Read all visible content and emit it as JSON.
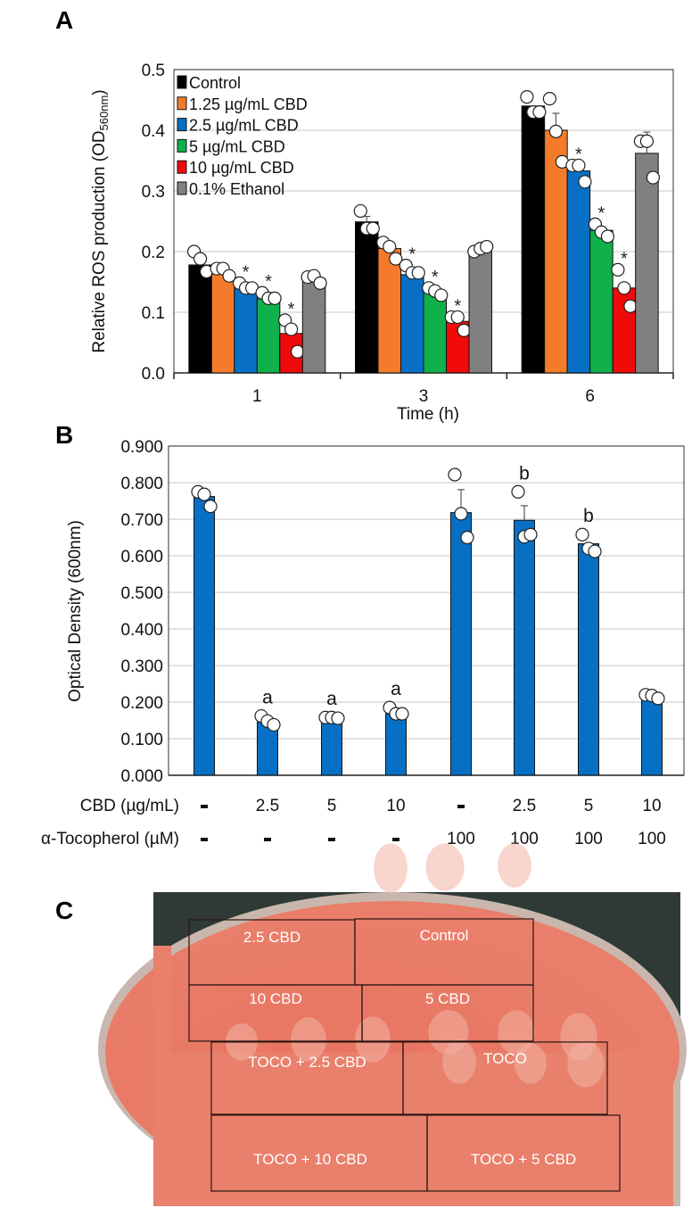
{
  "panels": {
    "a": "A",
    "b": "B",
    "c": "C"
  },
  "chart_data": [
    {
      "type": "bar",
      "panel": "A",
      "xlabel": "Time (h)",
      "ylabel": "Relative ROS production (OD",
      "ylabel_sub": "560nm",
      "ylabel_end": ")",
      "categories": [
        "1",
        "3",
        "6"
      ],
      "ylim": [
        0,
        0.5
      ],
      "yticks": [
        "0.0",
        "0.1",
        "0.2",
        "0.3",
        "0.4",
        "0.5"
      ],
      "grid": true,
      "legend_position": "top-left",
      "significance_marker": "*",
      "series": [
        {
          "name": "Control",
          "color": "#000000",
          "values": [
            0.178,
            0.249,
            0.44
          ],
          "error_top": [
            null,
            0.258,
            null
          ],
          "significant": [
            false,
            false,
            false
          ],
          "points": [
            [
              0.2,
              0.188,
              0.167
            ],
            [
              0.267,
              0.238,
              0.238
            ],
            [
              0.455,
              0.43,
              0.43
            ]
          ]
        },
        {
          "name": "1.25 µg/mL CBD",
          "color": "#f47b2a",
          "values": [
            0.163,
            0.205,
            0.4
          ],
          "error_top": [
            null,
            null,
            0.428
          ],
          "significant": [
            false,
            false,
            false
          ],
          "points": [
            [
              0.172,
              0.172,
              0.16
            ],
            [
              0.215,
              0.208,
              0.188
            ],
            [
              0.452,
              0.398,
              0.348
            ]
          ]
        },
        {
          "name": "2.5 µg/mL CBD",
          "color": "#0870c4",
          "values": [
            0.143,
            0.162,
            0.333
          ],
          "error_top": [
            null,
            null,
            null
          ],
          "significant": [
            true,
            true,
            true
          ],
          "points": [
            [
              0.148,
              0.14,
              0.14
            ],
            [
              0.177,
              0.165,
              0.165
            ],
            [
              0.342,
              0.342,
              0.315
            ]
          ]
        },
        {
          "name": "5 µg/mL CBD",
          "color": "#10b04a",
          "values": [
            0.122,
            0.133,
            0.235
          ],
          "error_top": [
            null,
            null,
            null
          ],
          "significant": [
            true,
            true,
            true
          ],
          "points": [
            [
              0.132,
              0.123,
              0.123
            ],
            [
              0.14,
              0.135,
              0.128
            ],
            [
              0.245,
              0.232,
              0.225
            ]
          ]
        },
        {
          "name": "10 µg/mL CBD",
          "color": "#f00a0a",
          "values": [
            0.065,
            0.085,
            0.14
          ],
          "error_top": [
            null,
            null,
            null
          ],
          "significant": [
            true,
            true,
            true
          ],
          "points": [
            [
              0.087,
              0.072,
              0.035
            ],
            [
              0.092,
              0.092,
              0.07
            ],
            [
              0.17,
              0.14,
              0.11
            ]
          ]
        },
        {
          "name": "0.1% Ethanol",
          "color": "#808080",
          "values": [
            0.155,
            0.205,
            0.362
          ],
          "error_top": [
            null,
            null,
            0.397
          ],
          "significant": [
            false,
            false,
            false
          ],
          "points": [
            [
              0.158,
              0.16,
              0.148
            ],
            [
              0.2,
              0.205,
              0.208
            ],
            [
              0.382,
              0.382,
              0.322
            ]
          ]
        }
      ]
    },
    {
      "type": "bar",
      "panel": "B",
      "ylabel": "Optical Density (600nm)",
      "ylim": [
        0,
        0.9
      ],
      "yticks": [
        "0.000",
        "0.100",
        "0.200",
        "0.300",
        "0.400",
        "0.500",
        "0.600",
        "0.700",
        "0.800",
        "0.900"
      ],
      "grid": true,
      "color": "#0870c4",
      "row_labels": [
        "CBD (µg/mL)",
        "α-Tocopherol (µM)"
      ],
      "cbd": [
        "-",
        "2.5",
        "5",
        "10",
        "-",
        "2.5",
        "5",
        "10"
      ],
      "tocopherol": [
        "-",
        "-",
        "-",
        "-",
        "100",
        "100",
        "100",
        "100"
      ],
      "values": [
        0.762,
        0.145,
        0.155,
        0.168,
        0.718,
        0.697,
        0.633,
        0.21
      ],
      "error_top": [
        null,
        null,
        null,
        null,
        0.781,
        0.737,
        null,
        null
      ],
      "letters": [
        "",
        "a",
        "a",
        "a",
        "",
        "b",
        "b",
        ""
      ],
      "points": [
        [
          0.775,
          0.768,
          0.735
        ],
        [
          0.162,
          0.148,
          0.138
        ],
        [
          0.158,
          0.158,
          0.156
        ],
        [
          0.185,
          0.168,
          0.168
        ],
        [
          0.822,
          0.715,
          0.65
        ],
        [
          0.775,
          0.652,
          0.658
        ],
        [
          0.658,
          0.62,
          0.612
        ],
        [
          0.22,
          0.218,
          0.21
        ]
      ]
    }
  ],
  "plate": {
    "agar_color": "#e8735f",
    "regions": [
      {
        "label": "2.5 CBD",
        "spots": 0
      },
      {
        "label": "Control",
        "spots": 3
      },
      {
        "label": "10 CBD",
        "spots": 0
      },
      {
        "label": "5 CBD",
        "spots": 0
      },
      {
        "label": "TOCO + 2.5 CBD",
        "spots": 3
      },
      {
        "label": "TOCO",
        "spots": 3
      },
      {
        "label": "TOCO + 10 CBD",
        "spots": 0
      },
      {
        "label": "TOCO + 5 CBD",
        "spots": 3
      }
    ]
  }
}
